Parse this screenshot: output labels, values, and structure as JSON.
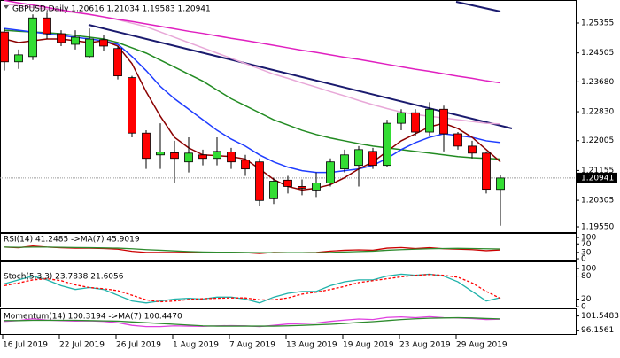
{
  "chart_data": [
    {
      "type": "candlestick",
      "title": "GBPUSD,Daily  1.20616 1.21034 1.19583 1.20941",
      "categories": [
        "16 Jul 2019",
        null,
        null,
        null,
        "22 Jul 2019",
        null,
        null,
        null,
        "26 Jul 2019",
        null,
        null,
        null,
        "1 Aug 2019",
        null,
        null,
        null,
        "7 Aug 2019",
        null,
        null,
        null,
        "13 Aug 2019",
        null,
        null,
        null,
        "19 Aug 2019",
        null,
        null,
        null,
        "23 Aug 2019",
        null,
        null,
        null,
        "29 Aug 2019",
        null,
        null,
        null
      ],
      "open": [
        1.251,
        1.2425,
        1.244,
        1.255,
        1.2505,
        1.2475,
        1.244,
        1.2488,
        1.2463,
        1.238,
        1.2222,
        1.216,
        1.2166,
        1.214,
        1.216,
        1.215,
        1.2168,
        1.2145,
        1.214,
        1.2035,
        1.2088,
        1.207,
        1.206,
        1.208,
        1.212,
        1.213,
        1.217,
        1.213,
        1.225,
        1.228,
        1.2225,
        1.229,
        1.222,
        1.2185,
        1.2165,
        1.20616
      ],
      "high": [
        1.252,
        1.246,
        1.256,
        1.2565,
        1.2515,
        1.2515,
        1.252,
        1.25,
        1.247,
        1.2385,
        1.223,
        1.225,
        1.22,
        1.221,
        1.2175,
        1.221,
        1.218,
        1.216,
        1.215,
        1.2095,
        1.21,
        1.209,
        1.211,
        1.215,
        1.2175,
        1.2185,
        1.218,
        1.226,
        1.229,
        1.229,
        1.231,
        1.23,
        1.2225,
        1.22,
        1.217,
        1.21034
      ],
      "low": [
        1.24,
        1.2405,
        1.243,
        1.249,
        1.247,
        1.246,
        1.2435,
        1.2455,
        1.2375,
        1.221,
        1.212,
        1.212,
        1.208,
        1.211,
        1.213,
        1.213,
        1.212,
        1.21,
        1.2015,
        1.202,
        1.205,
        1.2045,
        1.204,
        1.207,
        1.211,
        1.207,
        1.212,
        1.2125,
        1.223,
        1.2215,
        1.2215,
        1.217,
        1.2175,
        1.215,
        1.205,
        1.19583
      ],
      "close": [
        1.2425,
        1.2445,
        1.255,
        1.2505,
        1.248,
        1.2495,
        1.249,
        1.247,
        1.2385,
        1.2222,
        1.215,
        1.2168,
        1.215,
        1.2165,
        1.215,
        1.217,
        1.214,
        1.212,
        1.203,
        1.2085,
        1.207,
        1.2065,
        1.208,
        1.214,
        1.216,
        1.2175,
        1.213,
        1.225,
        1.228,
        1.2225,
        1.229,
        1.222,
        1.2185,
        1.2165,
        1.2062,
        1.20941
      ],
      "up_color": "#33dd33",
      "down_color": "#ff0000",
      "series": [
        {
          "color": "#e8a8d8",
          "values": [
            1.259,
            1.2585,
            1.258,
            1.2575,
            1.257,
            1.2565,
            1.256,
            1.2553,
            1.2545,
            1.2535,
            1.2525,
            1.251,
            1.2495,
            1.248,
            1.2465,
            1.245,
            1.2435,
            1.242,
            1.2405,
            1.239,
            1.2378,
            1.2365,
            1.2353,
            1.234,
            1.2328,
            1.2315,
            1.2303,
            1.2292,
            1.2282,
            1.2275,
            1.227,
            1.2265,
            1.226,
            1.2255,
            1.225,
            1.2248
          ]
        },
        {
          "color": "#e020c0",
          "values": [
            1.26,
            1.2593,
            1.2587,
            1.258,
            1.2573,
            1.2566,
            1.256,
            1.2553,
            1.2546,
            1.254,
            1.2533,
            1.2526,
            1.2519,
            1.2512,
            1.2506,
            1.2499,
            1.2492,
            1.2486,
            1.2479,
            1.2472,
            1.2465,
            1.2458,
            1.2452,
            1.2445,
            1.2438,
            1.2432,
            1.2425,
            1.2418,
            1.2411,
            1.2404,
            1.2398,
            1.2391,
            1.2384,
            1.2378,
            1.2371,
            1.2365
          ]
        },
        {
          "color": "#228b22",
          "values": [
            1.2515,
            1.2512,
            1.251,
            1.2508,
            1.2505,
            1.25,
            1.2495,
            1.249,
            1.248,
            1.2465,
            1.245,
            1.243,
            1.241,
            1.239,
            1.237,
            1.2345,
            1.232,
            1.23,
            1.228,
            1.226,
            1.2245,
            1.223,
            1.2218,
            1.2208,
            1.22,
            1.2192,
            1.2185,
            1.218,
            1.2175,
            1.217,
            1.2165,
            1.216,
            1.2155,
            1.2152,
            1.215,
            1.2148
          ]
        },
        {
          "color": "#1e3cff",
          "values": [
            1.252,
            1.2515,
            1.251,
            1.2505,
            1.25,
            1.2495,
            1.249,
            1.2485,
            1.2475,
            1.244,
            1.24,
            1.2355,
            1.232,
            1.229,
            1.226,
            1.223,
            1.2205,
            1.2185,
            1.216,
            1.214,
            1.2125,
            1.2115,
            1.211,
            1.211,
            1.2115,
            1.212,
            1.213,
            1.215,
            1.2175,
            1.2195,
            1.221,
            1.222,
            1.2215,
            1.221,
            1.22,
            1.2195
          ]
        },
        {
          "color": "#8b0000",
          "values": [
            1.249,
            1.248,
            1.2485,
            1.249,
            1.249,
            1.2485,
            1.248,
            1.2485,
            1.247,
            1.242,
            1.234,
            1.227,
            1.221,
            1.218,
            1.216,
            1.2158,
            1.2155,
            1.2148,
            1.212,
            1.209,
            1.207,
            1.206,
            1.2065,
            1.2075,
            1.2095,
            1.212,
            1.214,
            1.217,
            1.22,
            1.222,
            1.224,
            1.225,
            1.2235,
            1.221,
            1.2175,
            1.214
          ]
        }
      ],
      "ylim": [
        1.19399,
        1.26011
      ],
      "yticks": [
        1.25355,
        1.24505,
        {
          "value": 1.2368,
          "label": "1.23680"
        },
        {
          "value": 1.2283,
          "label": "1.22830"
        },
        1.22005,
        1.21155,
        1.20305,
        {
          "value": 1.1955,
          "label": "1.19550"
        }
      ]
    },
    {
      "type": "line",
      "title": "RSI(14) 41.2485  ->MA(7) 45.9019",
      "series": [
        {
          "color": "#cc0000",
          "values": [
            55,
            52,
            60,
            55,
            52,
            50,
            50,
            48,
            45,
            35,
            30,
            30,
            30,
            31,
            30,
            31,
            30,
            29,
            25,
            30,
            29,
            29,
            30,
            36,
            40,
            42,
            40,
            50,
            53,
            48,
            52,
            47,
            45,
            43,
            38,
            41.2485
          ]
        },
        {
          "color": "#2e8b2e",
          "values": [
            55,
            54,
            55,
            55,
            54,
            53,
            52,
            51,
            50,
            47,
            43,
            40,
            37,
            34,
            32,
            31,
            31,
            30,
            29,
            29,
            29,
            29,
            29,
            30,
            32,
            34,
            36,
            40,
            43,
            45,
            47,
            48,
            49,
            48,
            47,
            45.9019
          ]
        }
      ],
      "ylim": [
        -4,
        117
      ],
      "yticks": [
        100,
        70,
        30,
        0
      ]
    },
    {
      "type": "line",
      "title": "Stoch(5,3,3) 23.7838 21.6056",
      "series": [
        {
          "color": "#20b2aa",
          "values": [
            60,
            70,
            80,
            70,
            55,
            45,
            50,
            45,
            30,
            15,
            10,
            15,
            20,
            22,
            20,
            25,
            25,
            20,
            10,
            25,
            35,
            40,
            40,
            55,
            65,
            70,
            70,
            80,
            85,
            82,
            85,
            80,
            65,
            40,
            15,
            23.7838
          ]
        },
        {
          "color": "#ff0000",
          "dash": true,
          "values": [
            55,
            62,
            70,
            73,
            68,
            57,
            50,
            47,
            42,
            30,
            18,
            13,
            15,
            19,
            21,
            22,
            23,
            23,
            18,
            18,
            23,
            33,
            38,
            45,
            53,
            63,
            68,
            73,
            78,
            82,
            84,
            82,
            77,
            62,
            40,
            21.6056
          ]
        }
      ],
      "ylim": [
        -2,
        116
      ],
      "yticks": [
        100,
        80,
        20,
        0
      ]
    },
    {
      "type": "line",
      "title": "Momentum(14) 100.3194  ->MA(7) 100.4470",
      "series": [
        {
          "color": "#e040e0",
          "values": [
            99.5,
            99.8,
            100.5,
            100,
            99.8,
            99.6,
            99.7,
            99.5,
            99,
            98,
            97.5,
            97.5,
            97.8,
            97.7,
            97.6,
            97.8,
            97.9,
            97.8,
            97.5,
            98,
            98.5,
            98.7,
            98.9,
            99.5,
            100,
            100.4,
            100.2,
            101,
            101.2,
            100.9,
            101.3,
            100.9,
            100.8,
            100.6,
            100.2,
            100.3194
          ]
        },
        {
          "color": "#2e8b2e",
          "values": [
            99.8,
            99.8,
            99.9,
            99.9,
            99.9,
            99.9,
            99.8,
            99.7,
            99.6,
            99.3,
            99,
            98.7,
            98.4,
            98.1,
            97.8,
            97.7,
            97.7,
            97.7,
            97.7,
            97.7,
            97.8,
            98,
            98.2,
            98.4,
            98.7,
            99.1,
            99.4,
            99.8,
            100.2,
            100.5,
            100.7,
            100.8,
            100.9,
            100.8,
            100.6,
            100.447
          ]
        }
      ],
      "ylim": [
        94.7,
        104.1
      ],
      "yticks": [
        101.5483,
        96.1561
      ]
    }
  ]
}
